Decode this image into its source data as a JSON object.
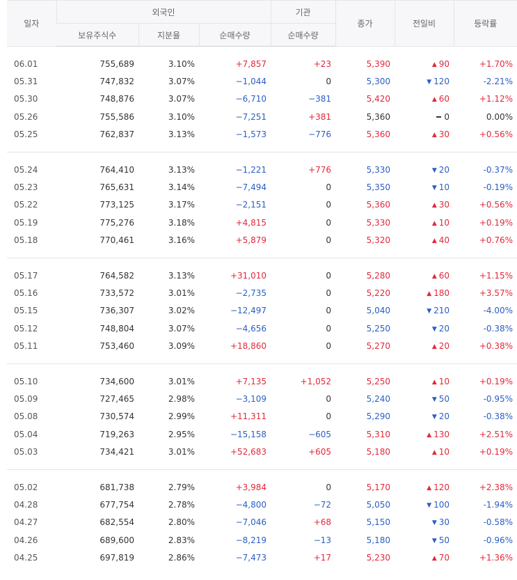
{
  "headers": {
    "date": "일자",
    "foreign": "외국인",
    "institution": "기관",
    "close": "종가",
    "change": "전일비",
    "rate": "등락률",
    "holdings": "보유주식수",
    "ratio": "지분율",
    "f_net": "순매수량",
    "i_net": "순매수량"
  },
  "groups": [
    [
      {
        "date": "06.01",
        "holdings": "755,689",
        "ratio": "3.10%",
        "f_net": "+7,857",
        "f_c": "red",
        "i_net": "+23",
        "i_c": "red",
        "close": "5,390",
        "close_c": "red",
        "dir": "up",
        "chg": "90",
        "rate": "+1.70%",
        "rate_c": "red"
      },
      {
        "date": "05.31",
        "holdings": "747,832",
        "ratio": "3.07%",
        "f_net": "−1,044",
        "f_c": "blue",
        "i_net": "0",
        "i_c": "black",
        "close": "5,300",
        "close_c": "blue",
        "dir": "down",
        "chg": "120",
        "rate": "-2.21%",
        "rate_c": "blue"
      },
      {
        "date": "05.30",
        "holdings": "748,876",
        "ratio": "3.07%",
        "f_net": "−6,710",
        "f_c": "blue",
        "i_net": "−381",
        "i_c": "blue",
        "close": "5,420",
        "close_c": "red",
        "dir": "up",
        "chg": "60",
        "rate": "+1.12%",
        "rate_c": "red"
      },
      {
        "date": "05.26",
        "holdings": "755,586",
        "ratio": "3.10%",
        "f_net": "−7,251",
        "f_c": "blue",
        "i_net": "+381",
        "i_c": "red",
        "close": "5,360",
        "close_c": "black",
        "dir": "flat",
        "chg": "0",
        "rate": "0.00%",
        "rate_c": "black"
      },
      {
        "date": "05.25",
        "holdings": "762,837",
        "ratio": "3.13%",
        "f_net": "−1,573",
        "f_c": "blue",
        "i_net": "−776",
        "i_c": "blue",
        "close": "5,360",
        "close_c": "red",
        "dir": "up",
        "chg": "30",
        "rate": "+0.56%",
        "rate_c": "red"
      }
    ],
    [
      {
        "date": "05.24",
        "holdings": "764,410",
        "ratio": "3.13%",
        "f_net": "−1,221",
        "f_c": "blue",
        "i_net": "+776",
        "i_c": "red",
        "close": "5,330",
        "close_c": "blue",
        "dir": "down",
        "chg": "20",
        "rate": "-0.37%",
        "rate_c": "blue"
      },
      {
        "date": "05.23",
        "holdings": "765,631",
        "ratio": "3.14%",
        "f_net": "−7,494",
        "f_c": "blue",
        "i_net": "0",
        "i_c": "black",
        "close": "5,350",
        "close_c": "blue",
        "dir": "down",
        "chg": "10",
        "rate": "-0.19%",
        "rate_c": "blue"
      },
      {
        "date": "05.22",
        "holdings": "773,125",
        "ratio": "3.17%",
        "f_net": "−2,151",
        "f_c": "blue",
        "i_net": "0",
        "i_c": "black",
        "close": "5,360",
        "close_c": "red",
        "dir": "up",
        "chg": "30",
        "rate": "+0.56%",
        "rate_c": "red"
      },
      {
        "date": "05.19",
        "holdings": "775,276",
        "ratio": "3.18%",
        "f_net": "+4,815",
        "f_c": "red",
        "i_net": "0",
        "i_c": "black",
        "close": "5,330",
        "close_c": "red",
        "dir": "up",
        "chg": "10",
        "rate": "+0.19%",
        "rate_c": "red"
      },
      {
        "date": "05.18",
        "holdings": "770,461",
        "ratio": "3.16%",
        "f_net": "+5,879",
        "f_c": "red",
        "i_net": "0",
        "i_c": "black",
        "close": "5,320",
        "close_c": "red",
        "dir": "up",
        "chg": "40",
        "rate": "+0.76%",
        "rate_c": "red"
      }
    ],
    [
      {
        "date": "05.17",
        "holdings": "764,582",
        "ratio": "3.13%",
        "f_net": "+31,010",
        "f_c": "red",
        "i_net": "0",
        "i_c": "black",
        "close": "5,280",
        "close_c": "red",
        "dir": "up",
        "chg": "60",
        "rate": "+1.15%",
        "rate_c": "red"
      },
      {
        "date": "05.16",
        "holdings": "733,572",
        "ratio": "3.01%",
        "f_net": "−2,735",
        "f_c": "blue",
        "i_net": "0",
        "i_c": "black",
        "close": "5,220",
        "close_c": "red",
        "dir": "up",
        "chg": "180",
        "rate": "+3.57%",
        "rate_c": "red"
      },
      {
        "date": "05.15",
        "holdings": "736,307",
        "ratio": "3.02%",
        "f_net": "−12,497",
        "f_c": "blue",
        "i_net": "0",
        "i_c": "black",
        "close": "5,040",
        "close_c": "blue",
        "dir": "down",
        "chg": "210",
        "rate": "-4.00%",
        "rate_c": "blue"
      },
      {
        "date": "05.12",
        "holdings": "748,804",
        "ratio": "3.07%",
        "f_net": "−4,656",
        "f_c": "blue",
        "i_net": "0",
        "i_c": "black",
        "close": "5,250",
        "close_c": "blue",
        "dir": "down",
        "chg": "20",
        "rate": "-0.38%",
        "rate_c": "blue"
      },
      {
        "date": "05.11",
        "holdings": "753,460",
        "ratio": "3.09%",
        "f_net": "+18,860",
        "f_c": "red",
        "i_net": "0",
        "i_c": "black",
        "close": "5,270",
        "close_c": "red",
        "dir": "up",
        "chg": "20",
        "rate": "+0.38%",
        "rate_c": "red"
      }
    ],
    [
      {
        "date": "05.10",
        "holdings": "734,600",
        "ratio": "3.01%",
        "f_net": "+7,135",
        "f_c": "red",
        "i_net": "+1,052",
        "i_c": "red",
        "close": "5,250",
        "close_c": "red",
        "dir": "up",
        "chg": "10",
        "rate": "+0.19%",
        "rate_c": "red"
      },
      {
        "date": "05.09",
        "holdings": "727,465",
        "ratio": "2.98%",
        "f_net": "−3,109",
        "f_c": "blue",
        "i_net": "0",
        "i_c": "black",
        "close": "5,240",
        "close_c": "blue",
        "dir": "down",
        "chg": "50",
        "rate": "-0.95%",
        "rate_c": "blue"
      },
      {
        "date": "05.08",
        "holdings": "730,574",
        "ratio": "2.99%",
        "f_net": "+11,311",
        "f_c": "red",
        "i_net": "0",
        "i_c": "black",
        "close": "5,290",
        "close_c": "blue",
        "dir": "down",
        "chg": "20",
        "rate": "-0.38%",
        "rate_c": "blue"
      },
      {
        "date": "05.04",
        "holdings": "719,263",
        "ratio": "2.95%",
        "f_net": "−15,158",
        "f_c": "blue",
        "i_net": "−605",
        "i_c": "blue",
        "close": "5,310",
        "close_c": "red",
        "dir": "up",
        "chg": "130",
        "rate": "+2.51%",
        "rate_c": "red"
      },
      {
        "date": "05.03",
        "holdings": "734,421",
        "ratio": "3.01%",
        "f_net": "+52,683",
        "f_c": "red",
        "i_net": "+605",
        "i_c": "red",
        "close": "5,180",
        "close_c": "red",
        "dir": "up",
        "chg": "10",
        "rate": "+0.19%",
        "rate_c": "red"
      }
    ],
    [
      {
        "date": "05.02",
        "holdings": "681,738",
        "ratio": "2.79%",
        "f_net": "+3,984",
        "f_c": "red",
        "i_net": "0",
        "i_c": "black",
        "close": "5,170",
        "close_c": "red",
        "dir": "up",
        "chg": "120",
        "rate": "+2.38%",
        "rate_c": "red"
      },
      {
        "date": "04.28",
        "holdings": "677,754",
        "ratio": "2.78%",
        "f_net": "−4,800",
        "f_c": "blue",
        "i_net": "−72",
        "i_c": "blue",
        "close": "5,050",
        "close_c": "blue",
        "dir": "down",
        "chg": "100",
        "rate": "-1.94%",
        "rate_c": "blue"
      },
      {
        "date": "04.27",
        "holdings": "682,554",
        "ratio": "2.80%",
        "f_net": "−7,046",
        "f_c": "blue",
        "i_net": "+68",
        "i_c": "red",
        "close": "5,150",
        "close_c": "blue",
        "dir": "down",
        "chg": "30",
        "rate": "-0.58%",
        "rate_c": "blue"
      },
      {
        "date": "04.26",
        "holdings": "689,600",
        "ratio": "2.83%",
        "f_net": "−8,219",
        "f_c": "blue",
        "i_net": "−13",
        "i_c": "blue",
        "close": "5,180",
        "close_c": "blue",
        "dir": "down",
        "chg": "50",
        "rate": "-0.96%",
        "rate_c": "blue"
      },
      {
        "date": "04.25",
        "holdings": "697,819",
        "ratio": "2.86%",
        "f_net": "−7,473",
        "f_c": "blue",
        "i_net": "+17",
        "i_c": "red",
        "close": "5,230",
        "close_c": "red",
        "dir": "up",
        "chg": "70",
        "rate": "+1.36%",
        "rate_c": "red"
      }
    ]
  ]
}
